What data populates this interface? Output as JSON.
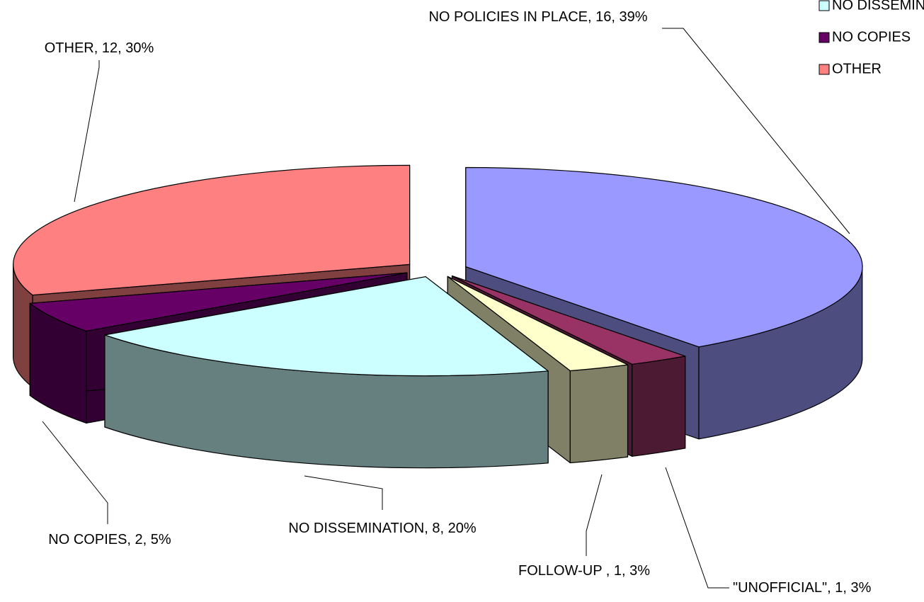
{
  "chart_data": {
    "type": "pie3d",
    "categories": [
      "NO POLICIES IN PLACE",
      "\"UNOFFICIAL\"",
      "FOLLOW-UP",
      "NO DISSEMINATION",
      "NO COPIES",
      "OTHER"
    ],
    "values": [
      16,
      1,
      1,
      8,
      2,
      12
    ],
    "value_labels": [
      "NO POLICIES IN PLACE, 16, 39%",
      "\"UNOFFICIAL\", 1, 3%",
      "FOLLOW-UP  , 1, 3%",
      "NO DISSEMINATION, 8, 20%",
      "NO COPIES, 2, 5%",
      "OTHER, 12, 30%"
    ],
    "colors": [
      "#9999ff",
      "#993366",
      "#ffffcc",
      "#ccffff",
      "#660066",
      "#ff8080"
    ],
    "legend": "top-right"
  }
}
